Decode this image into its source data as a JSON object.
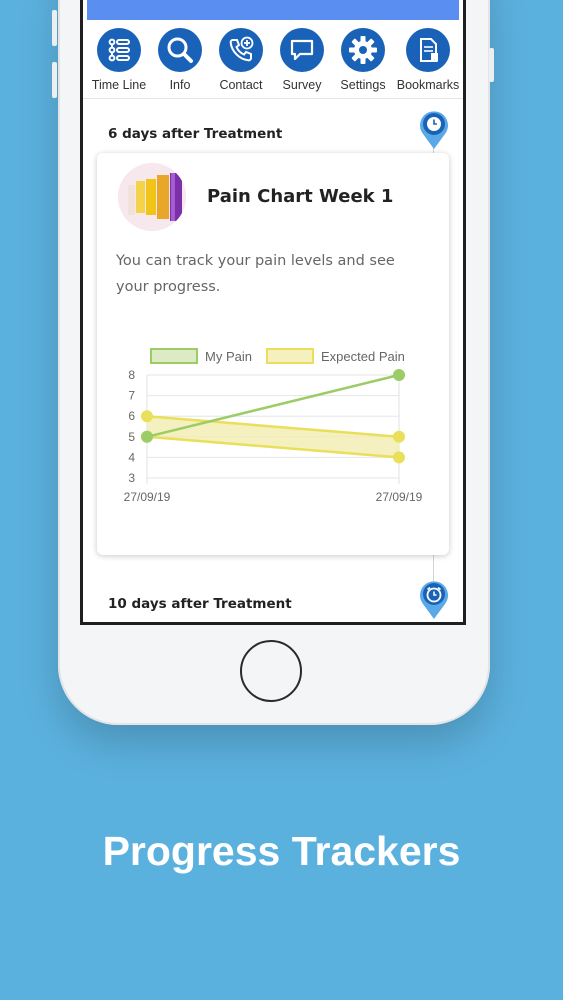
{
  "nav": {
    "items": [
      {
        "label": "Time Line",
        "icon": "timeline-icon"
      },
      {
        "label": "Info",
        "icon": "search-icon"
      },
      {
        "label": "Contact",
        "icon": "phone-add-icon"
      },
      {
        "label": "Survey",
        "icon": "chat-bubble-icon"
      },
      {
        "label": "Settings",
        "icon": "gear-icon"
      },
      {
        "label": "Bookmarks",
        "icon": "document-bookmark-icon"
      }
    ]
  },
  "timeline": {
    "sections": [
      {
        "heading": "6 days after Treatment",
        "pin_icon": "clock-icon"
      },
      {
        "heading": "10 days after Treatment",
        "pin_icon": "alarm-clock-icon"
      }
    ]
  },
  "card": {
    "title": "Pain Chart Week 1",
    "description": "You can track your pain levels and see your progress."
  },
  "chart_data": {
    "type": "line",
    "x": [
      "27/09/19",
      "27/09/19"
    ],
    "series": [
      {
        "name": "My Pain",
        "values": [
          5,
          8
        ],
        "color": "#9ccc65"
      },
      {
        "name": "Expected Pain",
        "upper": [
          6,
          5
        ],
        "lower": [
          5,
          4
        ],
        "color": "#e9df5a"
      }
    ],
    "ylim": [
      3,
      8
    ],
    "yticks": [
      "3",
      "4",
      "5",
      "6",
      "7",
      "8"
    ],
    "legend": "top",
    "grid": true
  },
  "caption": "Progress Trackers",
  "colors": {
    "background": "#5bb1de",
    "nav_circle": "#1a62b8",
    "my_pain": "#9ccc65",
    "expected_pain": "#e9df5a"
  }
}
